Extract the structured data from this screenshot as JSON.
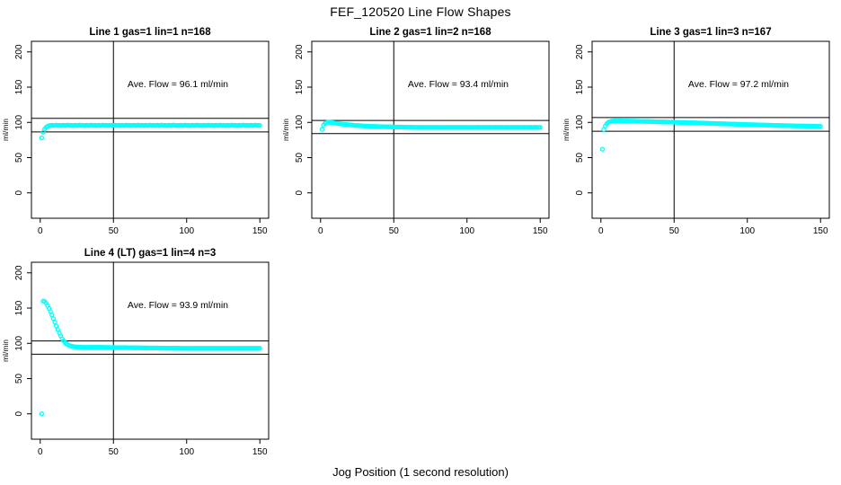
{
  "page": {
    "title": "FEF_120520  Line Flow Shapes",
    "xlabel": "Jog Position (1 second resolution)",
    "background": "#FFFFFF",
    "axis_color": "#000000",
    "marker_color": "#00FFFF",
    "marker": "open-circle"
  },
  "chart_data": [
    {
      "type": "scatter",
      "title": "Line 1 gas=1 lin=1 n=168",
      "annotation": "Ave. Flow =  96.1  ml/min",
      "ave_flow_ml_min": 96.1,
      "ylabel": "ml/min",
      "xlim": [
        -6,
        156
      ],
      "ylim": [
        -36,
        215
      ],
      "x_ticks": [
        0,
        50,
        100,
        150
      ],
      "y_ticks": [
        0,
        50,
        100,
        150,
        200
      ],
      "vline_x": 50,
      "hlines": [
        105.7,
        86.5
      ],
      "x_start": 1,
      "values": [
        78,
        86,
        90.5,
        93,
        94.5,
        95.3,
        95.7,
        96.0,
        95.6,
        95.9,
        96.1,
        95.7,
        95.9,
        95.6,
        95.7,
        96.0,
        95.6,
        95.9,
        96.1,
        95.7,
        95.9,
        95.6,
        95.7,
        96.0,
        95.6,
        95.9,
        96.1,
        95.7,
        95.9,
        95.6,
        95.7,
        96.0,
        95.6,
        95.9,
        96.1,
        95.7,
        95.9,
        95.6,
        95.7,
        96.0,
        95.6,
        95.9,
        96.1,
        95.7,
        95.9,
        95.6,
        95.7,
        96.0,
        95.6,
        95.9,
        96.1,
        95.7,
        95.9,
        95.6,
        95.7,
        96.0,
        95.6,
        95.9,
        96.1,
        95.7,
        95.9,
        95.6,
        95.7,
        96.0,
        95.6,
        95.9,
        96.1,
        95.7,
        95.9,
        95.6,
        95.7,
        96.0,
        95.6,
        95.9,
        96.1,
        95.7,
        95.9,
        95.6,
        95.7,
        96.0,
        95.6,
        95.9,
        96.1,
        95.7,
        95.9,
        95.6,
        95.7,
        96.0,
        95.6,
        95.9,
        96.1,
        95.7,
        95.9,
        95.6,
        95.7,
        96.0,
        95.6,
        95.9,
        96.1,
        95.7,
        95.9,
        95.6,
        95.7,
        96.0,
        95.6,
        95.9,
        96.1,
        95.7,
        95.9,
        95.6,
        95.7,
        96.0,
        95.6,
        95.9,
        96.1,
        95.7,
        95.9,
        95.6,
        95.7,
        96.0,
        95.6,
        95.9,
        96.1,
        95.7,
        95.9,
        95.6,
        95.7,
        96.0,
        95.6,
        95.9,
        96.1,
        95.7,
        95.9,
        95.6,
        95.7,
        96.0,
        95.6,
        95.9,
        96.1,
        95.7,
        95.9,
        95.6,
        95.7,
        96.0,
        95.6,
        95.9,
        96.1,
        95.7,
        95.9,
        95.6
      ]
    },
    {
      "type": "scatter",
      "title": "Line 2 gas=1 lin=2 n=168",
      "annotation": "Ave. Flow =  93.4  ml/min",
      "ave_flow_ml_min": 93.4,
      "ylabel": "ml/min",
      "xlim": [
        -6,
        156
      ],
      "ylim": [
        -36,
        215
      ],
      "x_ticks": [
        0,
        50,
        100,
        150
      ],
      "y_ticks": [
        0,
        50,
        100,
        150,
        200
      ],
      "vline_x": 50,
      "hlines": [
        102.7,
        84.1
      ],
      "x_start": 1,
      "values": [
        90,
        96,
        98.5,
        99.6,
        100.1,
        100.2,
        100.0,
        99.7,
        99.4,
        99.1,
        98.8,
        98.5,
        98.2,
        97.9,
        97.6,
        97.4,
        97.1,
        96.9,
        96.7,
        96.5,
        96.3,
        96.1,
        95.9,
        95.8,
        95.6,
        95.5,
        95.3,
        95.2,
        95.0,
        94.9,
        94.8,
        94.7,
        94.6,
        94.5,
        94.4,
        94.3,
        94.3,
        94.2,
        94.1,
        94.0,
        94.0,
        93.9,
        93.9,
        93.8,
        93.8,
        93.7,
        93.7,
        93.6,
        93.6,
        93.5,
        93.5,
        93.4,
        93.4,
        93.4,
        93.3,
        93.3,
        93.3,
        93.2,
        93.2,
        93.2,
        93.1,
        93.1,
        93.1,
        93.1,
        93.0,
        93.0,
        93.0,
        93.0,
        93.0,
        92.9,
        92.9,
        93.0,
        92.85,
        92.95,
        92.9,
        93.0,
        92.85,
        92.95,
        92.9,
        93.0,
        92.85,
        92.95,
        92.9,
        93.0,
        92.85,
        92.95,
        92.9,
        93.0,
        92.85,
        92.95,
        92.9,
        93.0,
        92.85,
        92.95,
        92.9,
        93.0,
        92.85,
        92.95,
        92.9,
        93.0,
        92.85,
        92.95,
        92.9,
        93.0,
        92.85,
        92.95,
        92.9,
        93.0,
        92.85,
        92.95,
        92.9,
        93.0,
        92.85,
        92.95,
        92.9,
        93.0,
        92.85,
        92.95,
        92.9,
        93.0,
        92.85,
        92.95,
        92.9,
        93.0,
        92.85,
        92.95,
        92.9,
        93.0,
        92.85,
        92.95,
        92.9,
        93.0,
        92.85,
        92.95,
        92.9,
        93.0,
        92.85,
        92.95,
        92.9,
        93.0,
        92.85,
        92.95,
        92.9,
        93.0,
        92.85,
        92.95,
        92.9,
        93.0,
        92.85,
        92.95
      ]
    },
    {
      "type": "scatter",
      "title": "Line 3 gas=1 lin=3 n=167",
      "annotation": "Ave. Flow =  97.2  ml/min",
      "ave_flow_ml_min": 97.2,
      "ylabel": "ml/min",
      "xlim": [
        -6,
        156
      ],
      "ylim": [
        -36,
        215
      ],
      "x_ticks": [
        0,
        50,
        100,
        150
      ],
      "y_ticks": [
        0,
        50,
        100,
        150,
        200
      ],
      "vline_x": 50,
      "hlines": [
        106.9,
        87.5
      ],
      "x_start": 1,
      "values": [
        62,
        90,
        95,
        98,
        100,
        101,
        101.6,
        102,
        102.2,
        102.3,
        102.3,
        102.3,
        102.2,
        102.2,
        102.1,
        102.1,
        102.0,
        102.0,
        101.9,
        101.9,
        101.8,
        101.8,
        101.7,
        101.7,
        101.6,
        101.6,
        101.5,
        101.5,
        101.4,
        101.4,
        101.3,
        101.3,
        101.2,
        101.2,
        101.1,
        101.1,
        101.0,
        101.0,
        100.9,
        100.9,
        100.8,
        100.7,
        100.7,
        100.6,
        100.6,
        100.5,
        100.5,
        100.4,
        100.4,
        100.3,
        100.2,
        100.2,
        100.1,
        100.0,
        100.0,
        99.9,
        99.8,
        99.8,
        99.7,
        99.6,
        99.6,
        99.5,
        99.4,
        99.4,
        99.3,
        99.2,
        99.2,
        99.1,
        99.0,
        99.0,
        98.9,
        98.8,
        98.8,
        98.7,
        98.6,
        98.6,
        98.5,
        98.4,
        98.4,
        98.3,
        98.2,
        98.2,
        98.1,
        98.0,
        98.0,
        97.9,
        97.8,
        97.8,
        97.7,
        97.6,
        97.6,
        97.5,
        97.4,
        97.4,
        97.3,
        97.2,
        97.2,
        97.1,
        97.0,
        97.0,
        96.9,
        96.8,
        96.8,
        96.7,
        96.6,
        96.6,
        96.5,
        96.4,
        96.4,
        96.3,
        96.3,
        96.2,
        96.1,
        96.1,
        96.0,
        96.0,
        95.9,
        95.8,
        95.8,
        95.7,
        95.7,
        95.6,
        95.6,
        95.5,
        95.5,
        95.4,
        95.4,
        95.3,
        95.3,
        95.2,
        95.2,
        95.1,
        95.1,
        95.0,
        95.0,
        95.0,
        94.9,
        94.9,
        94.8,
        94.8,
        94.8,
        94.7,
        94.7,
        94.7,
        94.6,
        94.6,
        94.6,
        94.5,
        94.5,
        94.5
      ]
    },
    {
      "type": "scatter",
      "title": "Line 4 (LT) gas=1 lin=4 n=3",
      "annotation": "Ave. Flow =  93.9  ml/min",
      "ave_flow_ml_min": 93.9,
      "ylabel": "ml/min",
      "xlim": [
        -6,
        156
      ],
      "ylim": [
        -36,
        215
      ],
      "x_ticks": [
        0,
        50,
        100,
        150
      ],
      "y_ticks": [
        0,
        50,
        100,
        150,
        200
      ],
      "vline_x": 50,
      "hlines": [
        103.3,
        84.5
      ],
      "x_start": 1,
      "values": [
        0,
        160,
        159.5,
        157,
        153.5,
        149.5,
        145,
        140,
        135,
        130,
        124.5,
        119.5,
        115,
        110.5,
        106.5,
        103.5,
        101,
        99.2,
        97.8,
        96.8,
        96.1,
        95.6,
        95.2,
        95.0,
        94.8,
        94.7,
        94.6,
        94.6,
        94.5,
        94.5,
        94.5,
        94.5,
        94.4,
        94.4,
        94.4,
        94.4,
        94.4,
        94.3,
        94.3,
        94.3,
        94.3,
        94.3,
        94.2,
        94.2,
        94.2,
        94.2,
        94.2,
        94.1,
        94.1,
        94.1,
        94.1,
        94.0,
        94.0,
        94.0,
        94.0,
        93.9,
        93.9,
        93.9,
        93.9,
        93.8,
        93.8,
        93.8,
        93.8,
        93.7,
        93.7,
        93.7,
        93.7,
        93.6,
        93.6,
        93.6,
        93.6,
        93.5,
        93.5,
        93.5,
        93.5,
        93.4,
        93.4,
        93.4,
        93.4,
        93.4,
        93.3,
        93.3,
        93.3,
        93.3,
        93.3,
        93.2,
        93.2,
        93.2,
        93.2,
        93.2,
        93.1,
        93.1,
        93.1,
        93.1,
        93.1,
        93.0,
        93.0,
        93.0,
        93.0,
        93.0,
        93.0,
        92.9,
        93.0,
        92.9,
        93.0,
        92.9,
        93.0,
        92.9,
        93.0,
        92.9,
        92.9,
        93.0,
        92.9,
        93.0,
        92.9,
        93.0,
        92.9,
        93.0,
        92.9,
        93.0,
        93.0,
        92.9,
        93.0,
        92.9,
        93.0,
        92.9,
        93.0,
        92.9,
        93.0,
        92.9,
        92.9,
        93.0,
        92.9,
        93.0,
        92.9,
        93.0,
        92.9,
        93.0,
        92.9,
        93.0,
        93.0,
        92.9,
        93.0,
        92.9,
        93.0,
        92.9,
        93.0,
        92.9,
        93.0,
        92.9
      ]
    }
  ]
}
